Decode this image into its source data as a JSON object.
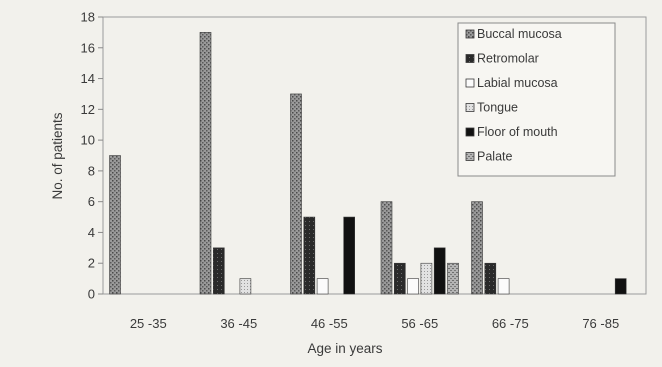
{
  "chart_data": {
    "type": "bar",
    "title": "",
    "xlabel": "Age in years",
    "ylabel": "No. of patients",
    "ylim": [
      0,
      18
    ],
    "yticks": [
      0,
      2,
      4,
      6,
      8,
      10,
      12,
      14,
      16,
      18
    ],
    "grid": false,
    "legend_position": "top-right",
    "categories": [
      "25 -35",
      "36 -45",
      "46 -55",
      "56 -65",
      "66 -75",
      "76 -85"
    ],
    "series": [
      {
        "name": "Buccal mucosa",
        "color": "#8c8c8c",
        "pattern": "stipple",
        "values": [
          9,
          17,
          13,
          6,
          6,
          0
        ]
      },
      {
        "name": "Retromolar",
        "color": "#2e2e2e",
        "pattern": "dark",
        "values": [
          0,
          3,
          5,
          2,
          2,
          0
        ]
      },
      {
        "name": "Labial mucosa",
        "color": "#ffffff",
        "pattern": "open",
        "values": [
          0,
          0,
          1,
          1,
          1,
          0
        ]
      },
      {
        "name": "Tongue",
        "color": "#d9d9d9",
        "pattern": "light",
        "values": [
          0,
          1,
          0,
          2,
          0,
          0
        ]
      },
      {
        "name": "Floor of mouth",
        "color": "#141414",
        "pattern": "black",
        "values": [
          0,
          0,
          5,
          3,
          0,
          1
        ]
      },
      {
        "name": "Palate",
        "color": "#a8a8a8",
        "pattern": "hatched",
        "values": [
          0,
          0,
          0,
          2,
          0,
          0
        ]
      }
    ]
  }
}
